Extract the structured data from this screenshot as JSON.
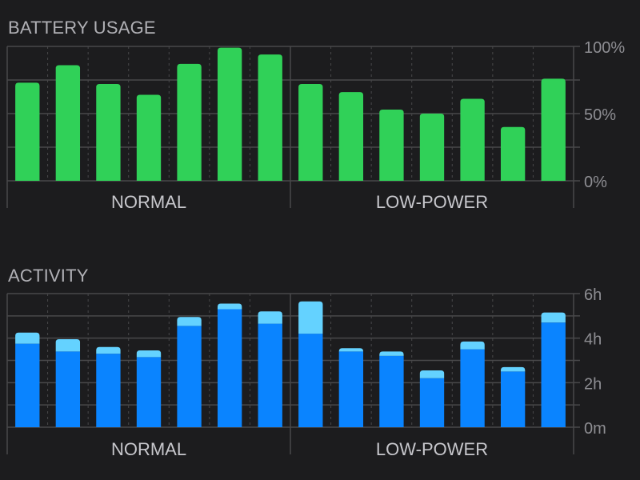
{
  "chart_data": [
    {
      "type": "bar",
      "title": "BATTERY USAGE",
      "groups": [
        "NORMAL",
        "LOW-POWER"
      ],
      "bars_per_group": 7,
      "values": [
        73,
        86,
        72,
        64,
        87,
        99,
        94,
        72,
        66,
        53,
        50,
        61,
        40,
        76
      ],
      "yticks": [
        "0%",
        "50%",
        "100%"
      ],
      "ylim": [
        0,
        100
      ],
      "colors": {
        "bar": "#30d158"
      }
    },
    {
      "type": "bar",
      "title": "ACTIVITY",
      "stacked": true,
      "groups": [
        "NORMAL",
        "LOW-POWER"
      ],
      "bars_per_group": 7,
      "series": [
        {
          "values": [
            3.75,
            3.4,
            3.3,
            3.15,
            4.55,
            5.3,
            4.65,
            4.2,
            3.4,
            3.2,
            2.2,
            3.5,
            2.5,
            4.7
          ]
        },
        {
          "values": [
            0.5,
            0.55,
            0.3,
            0.3,
            0.4,
            0.25,
            0.55,
            1.45,
            0.15,
            0.2,
            0.35,
            0.35,
            0.2,
            0.45
          ]
        }
      ],
      "yticks": [
        "0m",
        "2h",
        "4h",
        "6h"
      ],
      "ylim": [
        0,
        6
      ],
      "colors": {
        "series1": "#0a84ff",
        "series2": "#64d2ff"
      }
    }
  ],
  "colors": {
    "grid": "#48484a",
    "background": "#1c1c1e"
  }
}
